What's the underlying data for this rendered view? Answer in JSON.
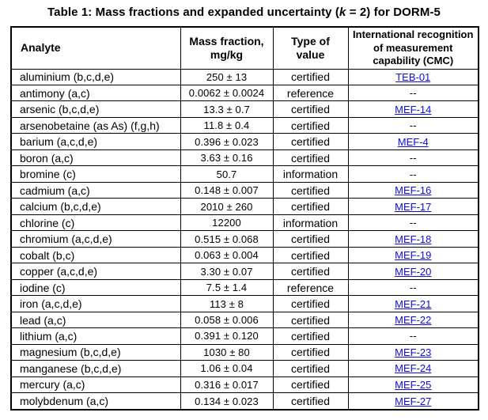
{
  "title": {
    "prefix": "Table 1: Mass fractions and expanded uncertainty (",
    "k": "k",
    "suffix": " = 2) for DORM-5"
  },
  "table": {
    "link_color": "#0b0bee",
    "headers": {
      "analyte": "Analyte",
      "mass_fraction": "Mass fraction,\nmg/kg",
      "type_of_value": "Type of\nvalue",
      "cmc": "International recognition\nof measurement\ncapability (CMC)"
    },
    "no_cmc_symbol": "--",
    "rows": [
      {
        "analyte": "aluminium (b,c,d,e)",
        "mass_fraction": "250 ± 13",
        "type_of_value": "certified",
        "cmc": "TEB-01",
        "cmc_is_link": true
      },
      {
        "analyte": "antimony (a,c)",
        "mass_fraction": "0.0062 ± 0.0024",
        "type_of_value": "reference",
        "cmc": "--",
        "cmc_is_link": false
      },
      {
        "analyte": "arsenic (b,c,d,e)",
        "mass_fraction": "13.3 ± 0.7",
        "type_of_value": "certified",
        "cmc": "MEF-14",
        "cmc_is_link": true
      },
      {
        "analyte": "arsenobetaine (as As) (f,g,h)",
        "mass_fraction": "11.8 ± 0.4",
        "type_of_value": "certified",
        "cmc": "--",
        "cmc_is_link": false
      },
      {
        "analyte": "barium (a,c,d,e)",
        "mass_fraction": "0.396 ± 0.023",
        "type_of_value": "certified",
        "cmc": "MEF-4",
        "cmc_is_link": true
      },
      {
        "analyte": "boron (a,c)",
        "mass_fraction": "3.63 ± 0.16",
        "type_of_value": "certified",
        "cmc": "--",
        "cmc_is_link": false
      },
      {
        "analyte": "bromine (c)",
        "mass_fraction": "50.7",
        "type_of_value": "information",
        "cmc": "--",
        "cmc_is_link": false
      },
      {
        "analyte": "cadmium (a,c)",
        "mass_fraction": "0.148 ± 0.007",
        "type_of_value": "certified",
        "cmc": "MEF-16",
        "cmc_is_link": true
      },
      {
        "analyte": "calcium (b,c,d,e)",
        "mass_fraction": "2010 ± 260",
        "type_of_value": "certified",
        "cmc": "MEF-17",
        "cmc_is_link": true
      },
      {
        "analyte": "chlorine (c)",
        "mass_fraction": "12200",
        "type_of_value": "information",
        "cmc": "--",
        "cmc_is_link": false
      },
      {
        "analyte": "chromium (a,c,d,e)",
        "mass_fraction": "0.515 ± 0.068",
        "type_of_value": "certified",
        "cmc": "MEF-18",
        "cmc_is_link": true
      },
      {
        "analyte": "cobalt (b,c)",
        "mass_fraction": "0.063 ± 0.004",
        "type_of_value": "certified",
        "cmc": "MEF-19",
        "cmc_is_link": true
      },
      {
        "analyte": "copper (a,c,d,e)",
        "mass_fraction": "3.30 ± 0.07",
        "type_of_value": "certified",
        "cmc": "MEF-20",
        "cmc_is_link": true
      },
      {
        "analyte": "iodine (c)",
        "mass_fraction": "7.5 ± 1.4",
        "type_of_value": "reference",
        "cmc": "--",
        "cmc_is_link": false
      },
      {
        "analyte": "iron (a,c,d,e)",
        "mass_fraction": "113 ± 8",
        "type_of_value": "certified",
        "cmc": "MEF-21",
        "cmc_is_link": true
      },
      {
        "analyte": "lead (a,c)",
        "mass_fraction": "0.058 ± 0.006",
        "type_of_value": "certified",
        "cmc": "MEF-22",
        "cmc_is_link": true
      },
      {
        "analyte": "lithium (a,c)",
        "mass_fraction": "0.391 ± 0.120",
        "type_of_value": "certified",
        "cmc": "--",
        "cmc_is_link": false
      },
      {
        "analyte": "magnesium (b,c,d,e)",
        "mass_fraction": "1030 ± 80",
        "type_of_value": "certified",
        "cmc": "MEF-23",
        "cmc_is_link": true
      },
      {
        "analyte": "manganese (b,c,d,e)",
        "mass_fraction": "1.06 ± 0.04",
        "type_of_value": "certified",
        "cmc": "MEF-24",
        "cmc_is_link": true
      },
      {
        "analyte": "mercury (a,c)",
        "mass_fraction": "0.316 ± 0.017",
        "type_of_value": "certified",
        "cmc": "MEF-25",
        "cmc_is_link": true
      },
      {
        "analyte": "molybdenum (a,c)",
        "mass_fraction": "0.134 ± 0.023",
        "type_of_value": "certified",
        "cmc": "MEF-27",
        "cmc_is_link": true
      }
    ]
  }
}
